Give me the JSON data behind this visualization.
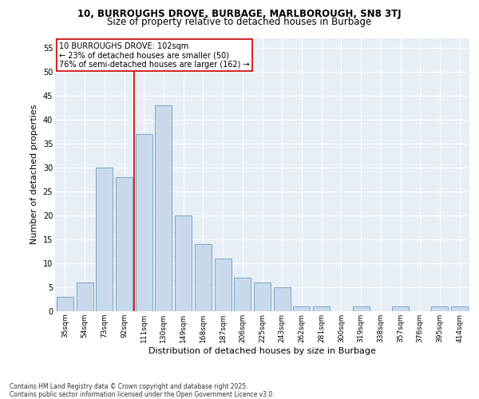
{
  "title1": "10, BURROUGHS DROVE, BURBAGE, MARLBOROUGH, SN8 3TJ",
  "title2": "Size of property relative to detached houses in Burbage",
  "xlabel": "Distribution of detached houses by size in Burbage",
  "ylabel": "Number of detached properties",
  "categories": [
    "35sqm",
    "54sqm",
    "73sqm",
    "92sqm",
    "111sqm",
    "130sqm",
    "149sqm",
    "168sqm",
    "187sqm",
    "206sqm",
    "225sqm",
    "243sqm",
    "262sqm",
    "281sqm",
    "300sqm",
    "319sqm",
    "338sqm",
    "357sqm",
    "376sqm",
    "395sqm",
    "414sqm"
  ],
  "values": [
    3,
    6,
    30,
    28,
    37,
    43,
    20,
    14,
    11,
    7,
    6,
    5,
    1,
    1,
    0,
    1,
    0,
    1,
    0,
    1,
    1
  ],
  "bar_color": "#c9d9eb",
  "bar_edge_color": "#6a9dc0",
  "vline_color": "#cc0000",
  "vline_x_index": 3.5,
  "annotation_text": "10 BURROUGHS DROVE: 102sqm\n← 23% of detached houses are smaller (50)\n76% of semi-detached houses are larger (162) →",
  "annotation_box_facecolor": "#ffffff",
  "annotation_box_edgecolor": "#cc0000",
  "ylim": [
    0,
    57
  ],
  "yticks": [
    0,
    5,
    10,
    15,
    20,
    25,
    30,
    35,
    40,
    45,
    50,
    55
  ],
  "axes_facecolor": "#e8eef5",
  "grid_color": "#ffffff",
  "fig_facecolor": "#ffffff",
  "footer": "Contains HM Land Registry data © Crown copyright and database right 2025.\nContains public sector information licensed under the Open Government Licence v3.0.",
  "title1_fontsize": 8.5,
  "title2_fontsize": 8.5,
  "xlabel_fontsize": 8,
  "ylabel_fontsize": 8,
  "tick_fontsize": 6.5,
  "annotation_fontsize": 7,
  "footer_fontsize": 5.5
}
